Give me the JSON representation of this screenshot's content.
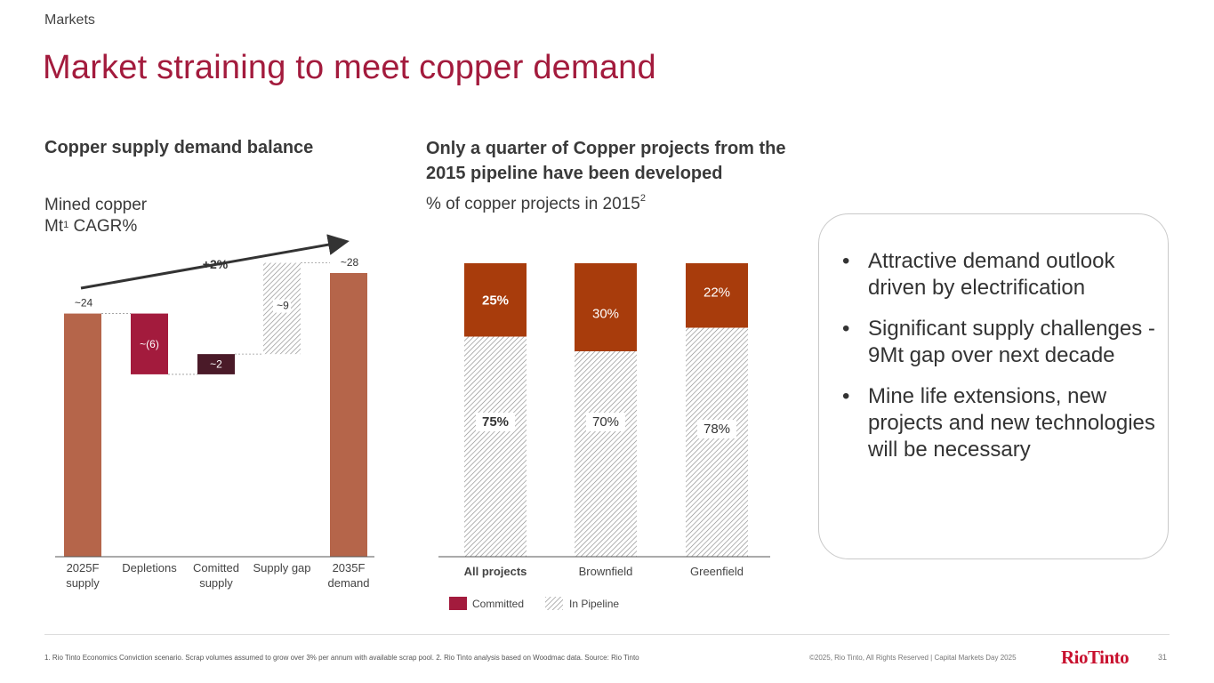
{
  "header": {
    "section": "Markets",
    "title": "Market straining to meet copper demand"
  },
  "left": {
    "heading": "Copper supply demand balance",
    "sub_line1": "Mined copper",
    "sub_line2_pre": "Mt",
    "sub_line2_sup": "1",
    "sub_line2_post": " CAGR%"
  },
  "right": {
    "heading": "Only a quarter of Copper projects from the 2015 pipeline have been developed",
    "sub_pre": "% of copper projects in 2015",
    "sub_sup": "2"
  },
  "chart_data": [
    {
      "type": "waterfall",
      "title": "Copper supply demand balance",
      "ylabel": "Mined copper Mt CAGR%",
      "ylim": [
        0,
        30
      ],
      "categories": [
        "2025F supply",
        "Depletions",
        "Comitted supply",
        "Supply gap",
        "2035F demand"
      ],
      "category_lines": [
        [
          "2025F",
          "supply"
        ],
        [
          "Depletions"
        ],
        [
          "Comitted",
          "supply"
        ],
        [
          "Supply gap"
        ],
        [
          "2035F",
          "demand"
        ]
      ],
      "values": [
        24,
        -6,
        2,
        9,
        28
      ],
      "bar_kinds": [
        "total",
        "decrease",
        "increase",
        "gap",
        "total"
      ],
      "labels": [
        "~24",
        "~(6)",
        "~2",
        "~9",
        "~28"
      ],
      "annotation": "+2%",
      "colors": {
        "total": "#b5654a",
        "decrease": "#a31b3d",
        "increase": "#4a1a28",
        "gap_hatch": "#888888"
      }
    },
    {
      "type": "bar",
      "stacked": true,
      "title": "Only a quarter of Copper projects from the 2015 pipeline have been developed",
      "ylabel": "% of copper projects in 2015",
      "ylim": [
        0,
        100
      ],
      "categories": [
        "All projects",
        "Brownfield",
        "Greenfield"
      ],
      "series": [
        {
          "name": "In Pipeline",
          "values": [
            75,
            70,
            78
          ],
          "labels": [
            "75%",
            "70%",
            "78%"
          ]
        },
        {
          "name": "Committed",
          "values": [
            25,
            30,
            22
          ],
          "labels": [
            "25%",
            "30%",
            "22%"
          ]
        }
      ],
      "legend": [
        "Committed",
        "In Pipeline"
      ],
      "colors": {
        "committed": "#a83c0c",
        "legend_committed": "#a31b3d",
        "pipeline_hatch": "#888888"
      }
    }
  ],
  "bullets": [
    "Attractive demand outlook driven by electrification",
    "Significant supply challenges - 9Mt gap over next decade",
    "Mine life extensions, new projects and new technologies will be necessary"
  ],
  "footer": {
    "footnote": "1. Rio Tinto Economics Conviction scenario. Scrap volumes assumed to grow over 3% per annum with available scrap pool. 2. Rio Tinto analysis based on Woodmac data. Source: Rio Tinto",
    "copyright": "©2025, Rio Tinto, All Rights Reserved  |  Capital Markets Day 2025",
    "logo": "RioTinto",
    "page": "31"
  }
}
